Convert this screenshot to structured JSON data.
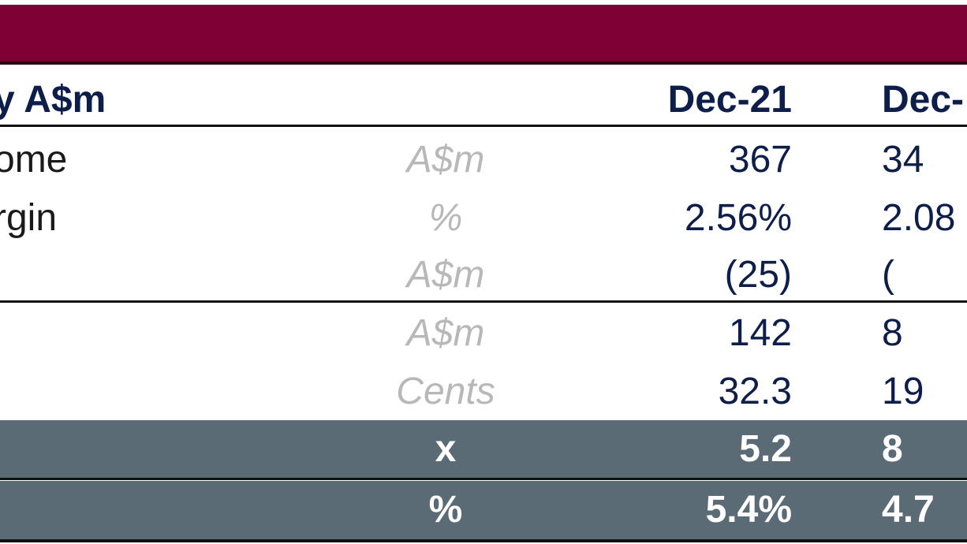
{
  "table": {
    "header": {
      "label": "y A$m",
      "col1": "Dec-21",
      "col2": "Dec-"
    },
    "rows": [
      {
        "label": "ome",
        "unit": "A$m",
        "col1": "367",
        "col2": "34"
      },
      {
        "label": "rgin",
        "unit": "%",
        "col1": "2.56%",
        "col2": "2.08"
      },
      {
        "label": "",
        "unit": "A$m",
        "col1": "(25)",
        "col2": "("
      },
      {
        "label": "",
        "unit": "A$m",
        "col1": "142",
        "col2": "8"
      },
      {
        "label": "",
        "unit": "Cents",
        "col1": "32.3",
        "col2": "19"
      },
      {
        "label": "",
        "unit": "x",
        "col1": "5.2",
        "col2": "8"
      },
      {
        "label": "",
        "unit": "%",
        "col1": "5.4%",
        "col2": "4.7"
      }
    ]
  },
  "colors": {
    "banner": "#7e0033",
    "highlight_row": "#5a6b76",
    "header_text": "#0e1e4a",
    "unit_text": "#b8b8b8"
  }
}
